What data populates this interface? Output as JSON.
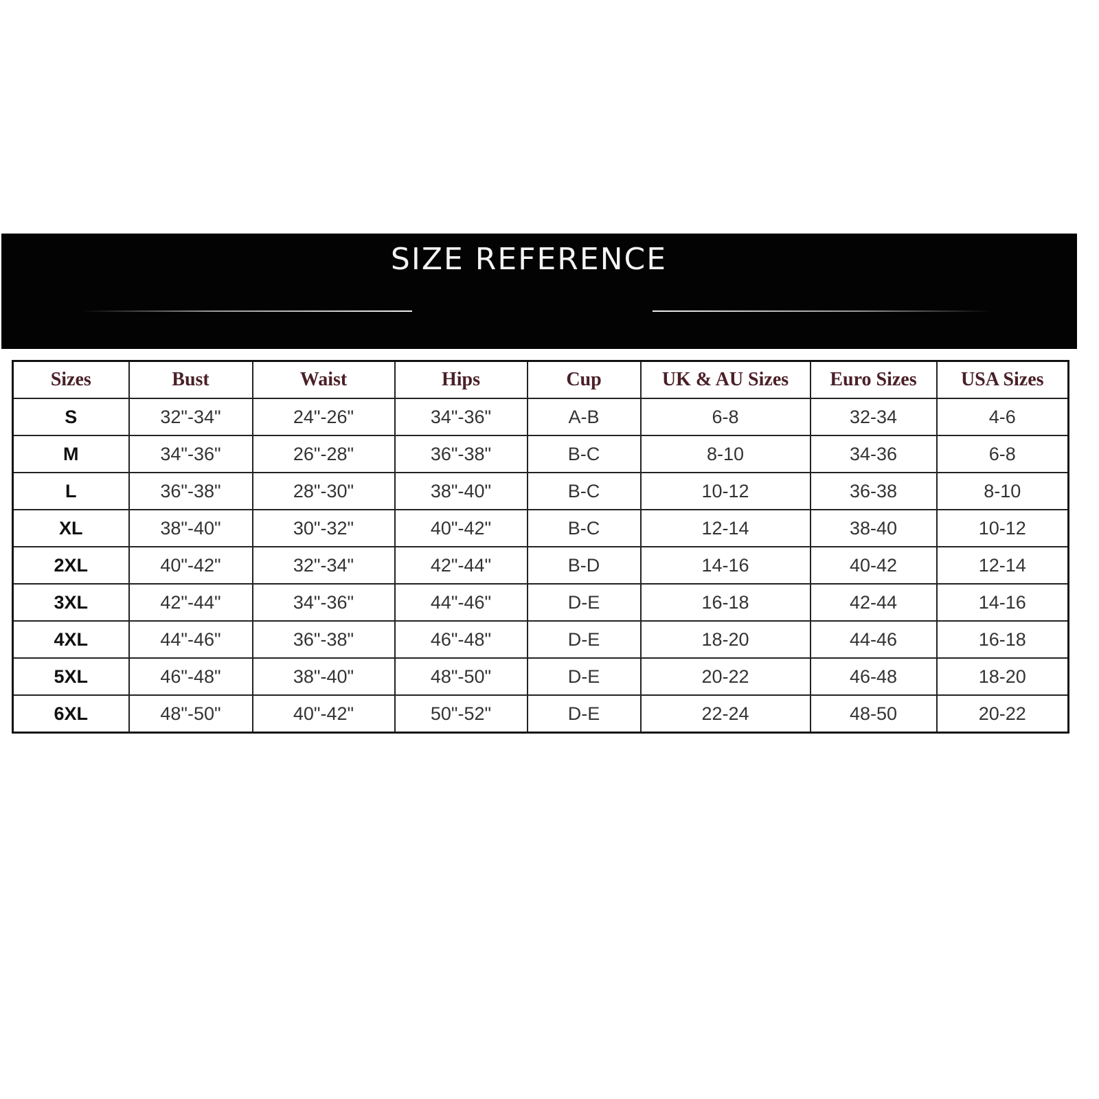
{
  "title": "SIZE REFERENCE",
  "headers": [
    "Sizes",
    "Bust",
    "Waist",
    "Hips",
    "Cup",
    "UK & AU Sizes",
    "Euro Sizes",
    "USA Sizes"
  ],
  "rows": [
    [
      "S",
      "32\"-34\"",
      "24\"-26\"",
      "34\"-36\"",
      "A-B",
      "6-8",
      "32-34",
      "4-6"
    ],
    [
      "M",
      "34\"-36\"",
      "26\"-28\"",
      "36\"-38\"",
      "B-C",
      "8-10",
      "34-36",
      "6-8"
    ],
    [
      "L",
      "36\"-38\"",
      "28\"-30\"",
      "38\"-40\"",
      "B-C",
      "10-12",
      "36-38",
      "8-10"
    ],
    [
      "XL",
      "38\"-40\"",
      "30\"-32\"",
      "40\"-42\"",
      "B-C",
      "12-14",
      "38-40",
      "10-12"
    ],
    [
      "2XL",
      "40\"-42\"",
      "32\"-34\"",
      "42\"-44\"",
      "B-D",
      "14-16",
      "40-42",
      "12-14"
    ],
    [
      "3XL",
      "42\"-44\"",
      "34\"-36\"",
      "44\"-46\"",
      "D-E",
      "16-18",
      "42-44",
      "14-16"
    ],
    [
      "4XL",
      "44\"-46\"",
      "36\"-38\"",
      "46\"-48\"",
      "D-E",
      "18-20",
      "44-46",
      "16-18"
    ],
    [
      "5XL",
      "46\"-48\"",
      "38\"-40\"",
      "48\"-50\"",
      "D-E",
      "20-22",
      "46-48",
      "18-20"
    ],
    [
      "6XL",
      "48\"-50\"",
      "40\"-42\"",
      "50\"-52\"",
      "D-E",
      "22-24",
      "48-50",
      "20-22"
    ]
  ],
  "colors": {
    "banner": "#030303",
    "header_text": "#4a2028"
  }
}
